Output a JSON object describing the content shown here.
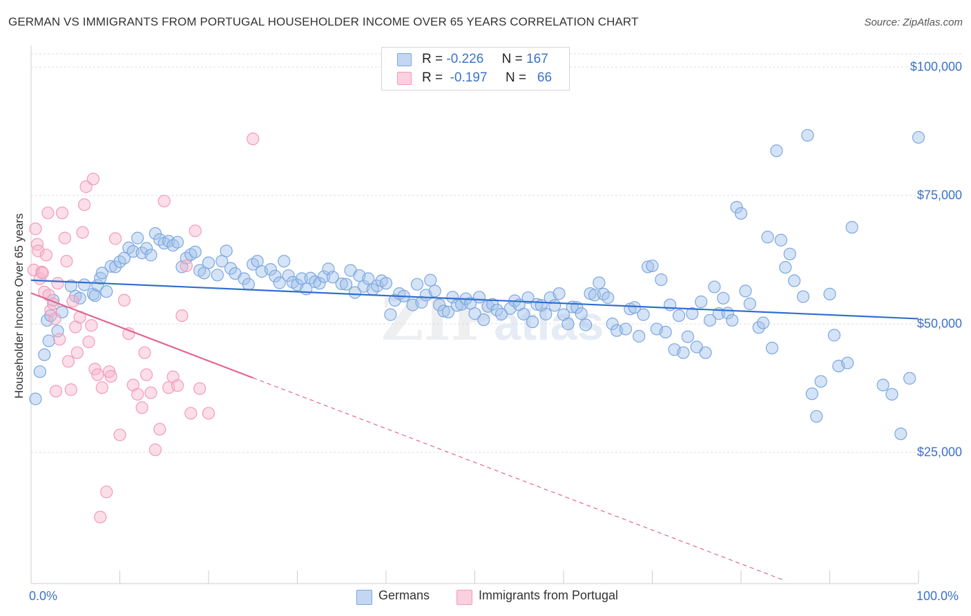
{
  "chart_data": {
    "type": "scatter",
    "title": "GERMAN VS IMMIGRANTS FROM PORTUGAL HOUSEHOLDER INCOME OVER 65 YEARS CORRELATION CHART",
    "source": "Source: ZipAtlas.com",
    "ylabel": "Householder Income Over 65 years",
    "xlim": [
      0,
      100
    ],
    "ylim": [
      0,
      105000
    ],
    "x_tick_labels": [
      "0.0%",
      "100.0%"
    ],
    "y_ticks": [
      {
        "value": 25000,
        "label": "$25,000"
      },
      {
        "value": 50000,
        "label": "$50,000"
      },
      {
        "value": 75000,
        "label": "$75,000"
      },
      {
        "value": 100000,
        "label": "$100,000"
      }
    ],
    "grid": true,
    "legend_position": "top-center",
    "watermark": "ZIPatlas",
    "series": [
      {
        "name": "Germans",
        "color": "#7aa7e0",
        "line_color": "#2f6fce",
        "R": "-0.226",
        "N": "167",
        "trend": {
          "x0": 0,
          "y0": 58500,
          "x1": 100,
          "y1": 51000,
          "dashed_from": null
        },
        "points": [
          [
            0.5,
            35400
          ],
          [
            1,
            40700
          ],
          [
            1.5,
            44000
          ],
          [
            1.8,
            50700
          ],
          [
            2,
            46700
          ],
          [
            2.2,
            51600
          ],
          [
            2.5,
            54600
          ],
          [
            3,
            48600
          ],
          [
            3.5,
            52300
          ],
          [
            4.5,
            57400
          ],
          [
            5,
            55400
          ],
          [
            5.5,
            55000
          ],
          [
            6,
            57600
          ],
          [
            7,
            55800
          ],
          [
            7.2,
            55500
          ],
          [
            7.5,
            57500
          ],
          [
            7.8,
            58900
          ],
          [
            8,
            59900
          ],
          [
            8.5,
            56300
          ],
          [
            9,
            61200
          ],
          [
            9.5,
            61100
          ],
          [
            10,
            62100
          ],
          [
            10.5,
            62800
          ],
          [
            11,
            64800
          ],
          [
            11.5,
            64100
          ],
          [
            12,
            66700
          ],
          [
            12.5,
            63800
          ],
          [
            13,
            64700
          ],
          [
            13.5,
            63400
          ],
          [
            14,
            67600
          ],
          [
            14.5,
            66400
          ],
          [
            15,
            65700
          ],
          [
            15.5,
            66100
          ],
          [
            16,
            65300
          ],
          [
            16.5,
            65900
          ],
          [
            17,
            61100
          ],
          [
            17.5,
            62800
          ],
          [
            18,
            63500
          ],
          [
            18.5,
            64000
          ],
          [
            19,
            60400
          ],
          [
            19.5,
            59900
          ],
          [
            20,
            61900
          ],
          [
            21,
            59500
          ],
          [
            21.5,
            62200
          ],
          [
            22,
            64200
          ],
          [
            22.5,
            60800
          ],
          [
            23,
            59800
          ],
          [
            24,
            58800
          ],
          [
            24.5,
            57700
          ],
          [
            25,
            61600
          ],
          [
            25.5,
            62200
          ],
          [
            26,
            60200
          ],
          [
            27,
            60600
          ],
          [
            27.5,
            59300
          ],
          [
            28,
            58000
          ],
          [
            28.5,
            62200
          ],
          [
            29,
            59400
          ],
          [
            29.5,
            58100
          ],
          [
            30,
            57600
          ],
          [
            30.5,
            58800
          ],
          [
            31,
            56800
          ],
          [
            31.5,
            58900
          ],
          [
            32,
            58200
          ],
          [
            32.5,
            57900
          ],
          [
            33,
            59200
          ],
          [
            33.5,
            60700
          ],
          [
            34,
            59100
          ],
          [
            35,
            57800
          ],
          [
            35.5,
            57700
          ],
          [
            36,
            60400
          ],
          [
            36.5,
            56100
          ],
          [
            37,
            59400
          ],
          [
            37.5,
            57300
          ],
          [
            38,
            58800
          ],
          [
            38.5,
            56700
          ],
          [
            39,
            57400
          ],
          [
            39.5,
            58400
          ],
          [
            40,
            57900
          ],
          [
            40.5,
            51800
          ],
          [
            41,
            54600
          ],
          [
            41.5,
            55900
          ],
          [
            42,
            55400
          ],
          [
            43,
            53700
          ],
          [
            43.5,
            57700
          ],
          [
            44,
            54200
          ],
          [
            44.5,
            55600
          ],
          [
            45,
            58500
          ],
          [
            45.5,
            56400
          ],
          [
            46,
            53700
          ],
          [
            46.5,
            52500
          ],
          [
            47,
            52300
          ],
          [
            47.5,
            55200
          ],
          [
            48,
            53600
          ],
          [
            48.5,
            53800
          ],
          [
            49,
            54900
          ],
          [
            49.5,
            54000
          ],
          [
            50,
            52000
          ],
          [
            50.5,
            55200
          ],
          [
            51,
            50800
          ],
          [
            51.5,
            53400
          ],
          [
            52,
            53800
          ],
          [
            52.5,
            52700
          ],
          [
            53,
            51900
          ],
          [
            54,
            53000
          ],
          [
            54.5,
            54500
          ],
          [
            55,
            53700
          ],
          [
            55.5,
            51900
          ],
          [
            56,
            55100
          ],
          [
            56.5,
            50400
          ],
          [
            57,
            53800
          ],
          [
            57.5,
            53600
          ],
          [
            58,
            51900
          ],
          [
            58.5,
            55100
          ],
          [
            59,
            53600
          ],
          [
            59.5,
            55900
          ],
          [
            60,
            51800
          ],
          [
            60.5,
            50000
          ],
          [
            61,
            53300
          ],
          [
            61.5,
            53200
          ],
          [
            62,
            52000
          ],
          [
            62.5,
            49800
          ],
          [
            63,
            55900
          ],
          [
            63.5,
            55600
          ],
          [
            64,
            58000
          ],
          [
            64.5,
            55800
          ],
          [
            65,
            55100
          ],
          [
            65.5,
            50000
          ],
          [
            66,
            48700
          ],
          [
            67,
            49000
          ],
          [
            67.5,
            52900
          ],
          [
            68,
            53200
          ],
          [
            68.5,
            47600
          ],
          [
            69,
            51800
          ],
          [
            69.5,
            61100
          ],
          [
            70,
            61300
          ],
          [
            70.5,
            49000
          ],
          [
            71,
            58600
          ],
          [
            71.5,
            48400
          ],
          [
            72,
            53700
          ],
          [
            72.5,
            45000
          ],
          [
            73,
            51600
          ],
          [
            73.5,
            44400
          ],
          [
            74,
            47500
          ],
          [
            74.5,
            52000
          ],
          [
            75,
            45500
          ],
          [
            75.5,
            54300
          ],
          [
            76,
            44400
          ],
          [
            76.5,
            50700
          ],
          [
            77,
            57200
          ],
          [
            77.5,
            52000
          ],
          [
            78,
            55000
          ],
          [
            78.5,
            52100
          ],
          [
            79,
            50700
          ],
          [
            79.5,
            72700
          ],
          [
            80,
            71500
          ],
          [
            80.5,
            56400
          ],
          [
            81,
            53900
          ],
          [
            82,
            49300
          ],
          [
            82.5,
            50200
          ],
          [
            83,
            66900
          ],
          [
            83.5,
            45300
          ],
          [
            84,
            83700
          ],
          [
            84.5,
            66300
          ],
          [
            85,
            61000
          ],
          [
            85.5,
            63600
          ],
          [
            86,
            58400
          ],
          [
            87,
            55300
          ],
          [
            87.5,
            86700
          ],
          [
            88,
            36400
          ],
          [
            88.5,
            32000
          ],
          [
            89,
            38800
          ],
          [
            90,
            55800
          ],
          [
            90.5,
            47800
          ],
          [
            91,
            41800
          ],
          [
            92,
            42400
          ],
          [
            92.5,
            68800
          ],
          [
            96,
            38100
          ],
          [
            97,
            36300
          ],
          [
            98,
            28600
          ],
          [
            99,
            39400
          ],
          [
            100,
            86300
          ]
        ]
      },
      {
        "name": "Immigrants from Portugal",
        "color": "#f49ab8",
        "line_color": "#e0668f",
        "R": "-0.197",
        "N": "66",
        "trend": {
          "x0": 0,
          "y0": 56000,
          "x1": 25,
          "y1": 39500,
          "dashed_to_x": 85,
          "dashed_to_y": 0
        },
        "points": [
          [
            0.3,
            60500
          ],
          [
            0.5,
            68500
          ],
          [
            0.7,
            65500
          ],
          [
            0.8,
            64200
          ],
          [
            1,
            58800
          ],
          [
            1.2,
            60100
          ],
          [
            1.3,
            59900
          ],
          [
            1.5,
            56200
          ],
          [
            1.7,
            63400
          ],
          [
            1.9,
            71600
          ],
          [
            2,
            55600
          ],
          [
            2.2,
            52600
          ],
          [
            2.5,
            53900
          ],
          [
            2.7,
            51000
          ],
          [
            2.8,
            36900
          ],
          [
            3,
            57900
          ],
          [
            3.2,
            47000
          ],
          [
            3.5,
            71600
          ],
          [
            3.8,
            66700
          ],
          [
            4,
            62200
          ],
          [
            4.2,
            42700
          ],
          [
            4.5,
            37200
          ],
          [
            4.7,
            54400
          ],
          [
            5,
            49400
          ],
          [
            5.2,
            44400
          ],
          [
            5.5,
            51300
          ],
          [
            5.8,
            67800
          ],
          [
            6,
            73200
          ],
          [
            6.2,
            76700
          ],
          [
            6.5,
            46500
          ],
          [
            6.8,
            49700
          ],
          [
            7,
            78200
          ],
          [
            7.2,
            41200
          ],
          [
            7.5,
            40100
          ],
          [
            7.8,
            12400
          ],
          [
            8,
            37600
          ],
          [
            8.5,
            17300
          ],
          [
            8.8,
            40700
          ],
          [
            9,
            39800
          ],
          [
            9.5,
            66600
          ],
          [
            10,
            28400
          ],
          [
            10.5,
            54600
          ],
          [
            11,
            48100
          ],
          [
            11.5,
            38100
          ],
          [
            12,
            36300
          ],
          [
            12.5,
            33700
          ],
          [
            12.8,
            44400
          ],
          [
            13,
            40100
          ],
          [
            13.5,
            36600
          ],
          [
            14,
            25500
          ],
          [
            14.5,
            29500
          ],
          [
            15,
            73900
          ],
          [
            15.5,
            37600
          ],
          [
            16,
            39700
          ],
          [
            16.5,
            38000
          ],
          [
            17,
            51600
          ],
          [
            17.5,
            61300
          ],
          [
            18,
            32600
          ],
          [
            18.5,
            68100
          ],
          [
            19,
            37400
          ],
          [
            20,
            32600
          ],
          [
            25,
            86000
          ]
        ]
      }
    ]
  },
  "legend": {
    "r_label": "R =",
    "n_label": "N ="
  },
  "watermark_text": {
    "zip": "ZIP",
    "atlas": "atlas"
  }
}
